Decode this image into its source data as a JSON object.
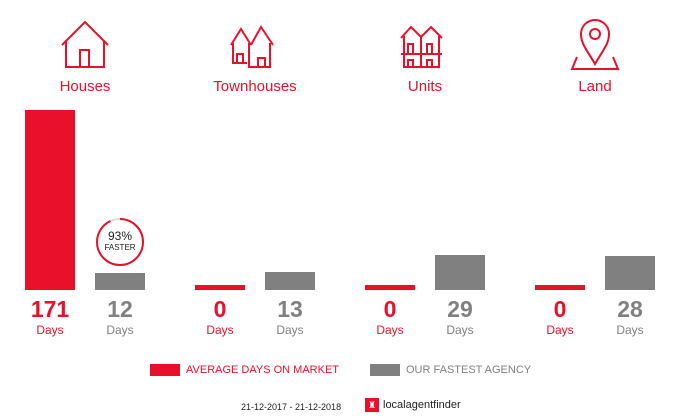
{
  "colors": {
    "average": "#e8102a",
    "agency": "#808080"
  },
  "chart_data": {
    "type": "bar",
    "categories": [
      "Houses",
      "Townhouses",
      "Units",
      "Land"
    ],
    "category_icons": [
      "house-icon",
      "townhouse-icon",
      "units-icon",
      "land-pin-icon"
    ],
    "series": [
      {
        "name": "AVERAGE DAYS ON MARKET",
        "values": [
          171,
          0,
          0,
          0
        ]
      },
      {
        "name": "OUR FASTEST AGENCY",
        "values": [
          12,
          13,
          29,
          28
        ]
      }
    ],
    "unit_label": "Days",
    "annotation": {
      "category": "Houses",
      "percent": "93%",
      "text": "FASTER",
      "fraction": 0.93
    },
    "legend": "bottom"
  },
  "footer": {
    "date_range": "21-12-2017 - 21-12-2018",
    "logo_text": "localagentfinder"
  }
}
